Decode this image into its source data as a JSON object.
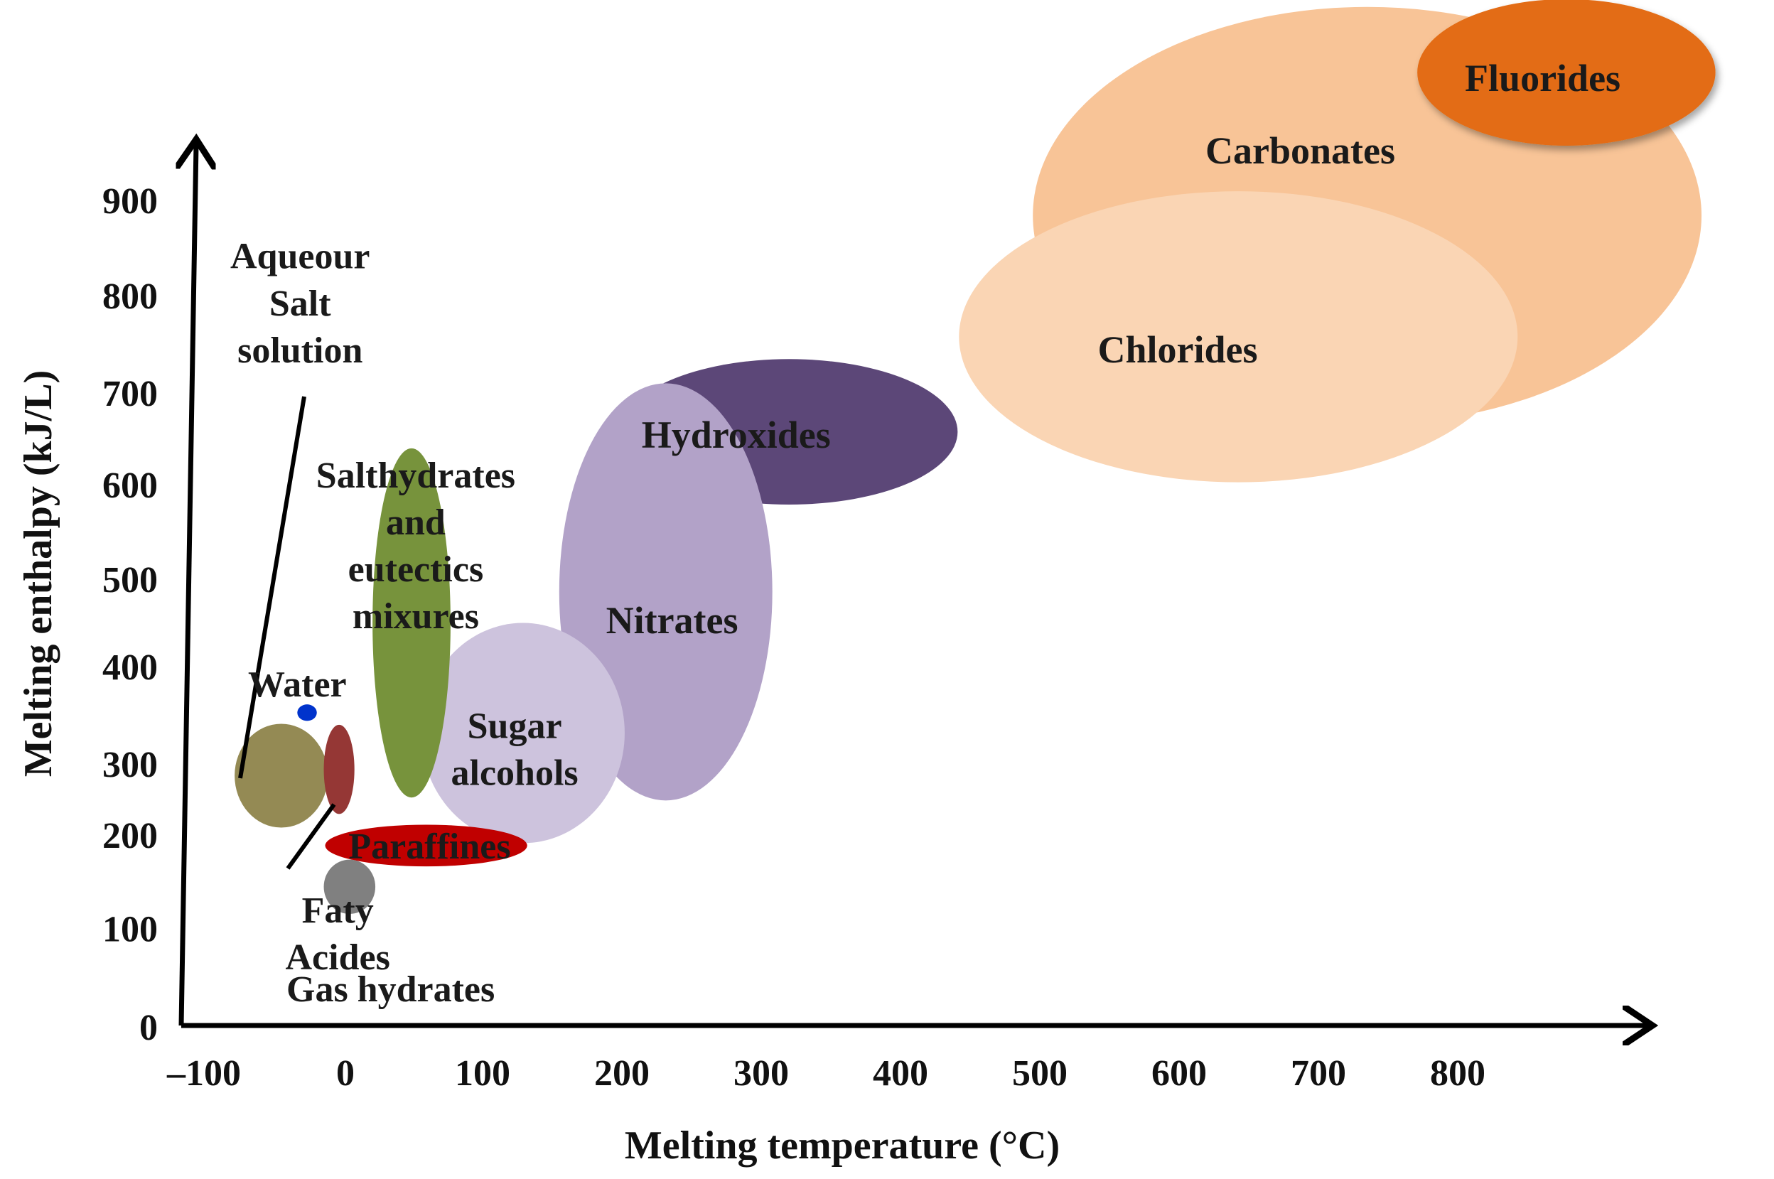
{
  "chart_data": {
    "type": "bubble",
    "xlabel": "Melting temperature (°C)",
    "ylabel": "Melting enthalpy (kJ/L)",
    "xlim": [
      -100,
      900
    ],
    "ylim": [
      0,
      900
    ],
    "x_ticks": [
      -100,
      0,
      100,
      200,
      300,
      400,
      500,
      600,
      700,
      800
    ],
    "x_tick_labels": [
      "–100",
      "0",
      "100",
      "200",
      "300",
      "400",
      "500",
      "600",
      "700",
      "800"
    ],
    "y_ticks": [
      0,
      100,
      200,
      300,
      400,
      500,
      600,
      700,
      800,
      900
    ],
    "y_tick_labels": [
      "0",
      "100",
      "200",
      "300",
      "400",
      "500",
      "600",
      "700",
      "800",
      "900"
    ],
    "grid": false,
    "regions": [
      {
        "name": "Carbonates",
        "label_lines": [
          "Carbonates"
        ],
        "x_range": [
          495,
          975
        ],
        "y_range": [
          620,
          1050
        ],
        "color": "#f8c497",
        "label_at": [
          687,
          902
        ]
      },
      {
        "name": "Chlorides",
        "label_lines": [
          "Chlorides"
        ],
        "x_range": [
          442,
          843
        ],
        "y_range": [
          560,
          860
        ],
        "color": "#fad5b4",
        "label_at": [
          599,
          697
        ]
      },
      {
        "name": "Fluorides",
        "label_lines": [
          "Fluorides"
        ],
        "x_range": [
          771,
          985
        ],
        "y_range": [
          907,
          1058
        ],
        "color": "#e36c12",
        "label_at": [
          861,
          977
        ]
      },
      {
        "name": "Hydroxides",
        "label_lines": [
          "Hydroxides"
        ],
        "x_range": [
          199,
          441
        ],
        "y_range": [
          537,
          687
        ],
        "color": "#5c4778",
        "label_at": [
          282,
          609
        ]
      },
      {
        "name": "Nitrates",
        "label_lines": [
          "Nitrates"
        ],
        "x_range": [
          155,
          308
        ],
        "y_range": [
          232,
          662
        ],
        "color": "#b2a2c8",
        "label_at": [
          236,
          418
        ]
      },
      {
        "name": "Sugar alcohols",
        "label_lines": [
          "Sugar",
          "alcohols"
        ],
        "x_range": [
          56,
          202
        ],
        "y_range": [
          188,
          415
        ],
        "color": "#cdc3dd",
        "label_at": [
          123,
          285
        ]
      },
      {
        "name": "Salthydrates and eutectics mixures",
        "label_lines": [
          "Salthydrates",
          "and",
          "eutectics",
          "mixures"
        ],
        "x_range": [
          21,
          77
        ],
        "y_range": [
          235,
          595
        ],
        "color": "#77933c",
        "label_at": [
          52,
          495
        ]
      },
      {
        "name": "Paraffines",
        "label_lines": [
          "Paraffines"
        ],
        "x_range": [
          -13,
          132
        ],
        "y_range": [
          164,
          207
        ],
        "color": "#c00000",
        "label_at": [
          62,
          185
        ]
      },
      {
        "name": "Aqueour Salt solution",
        "label_lines": [
          "Aqueour",
          "Salt",
          "solution"
        ],
        "x_range": [
          -78,
          -11
        ],
        "y_range": [
          204,
          311
        ],
        "color": "#948a54",
        "label_at": [
          -31,
          745
        ]
      },
      {
        "name": "Faty Acides",
        "label_lines": [
          "Faty",
          "Acides"
        ],
        "x_range": [
          -14,
          8
        ],
        "y_range": [
          218,
          310
        ],
        "color": "#953735",
        "label_at": [
          -4,
          95
        ]
      },
      {
        "name": "Gas hydrates",
        "label_lines": [
          "Gas hydrates"
        ],
        "x_range": [
          -14,
          23
        ],
        "y_range": [
          115,
          171
        ],
        "color": "#808080",
        "label_at": [
          34,
          38
        ]
      },
      {
        "name": "Water",
        "label_lines": [
          "Water"
        ],
        "x_range": [
          -33,
          -19
        ],
        "y_range": [
          314,
          331
        ],
        "color": "#0033cc",
        "label_at": [
          -33,
          352
        ]
      }
    ]
  }
}
